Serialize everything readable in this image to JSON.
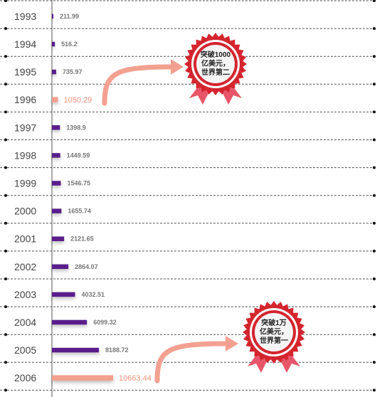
{
  "chart_data": {
    "type": "bar",
    "orientation": "horizontal",
    "categories": [
      "1993",
      "1994",
      "1995",
      "1996",
      "1997",
      "1998",
      "1999",
      "2000",
      "2001",
      "2002",
      "2003",
      "2004",
      "2005",
      "2006"
    ],
    "values": [
      211.99,
      516.2,
      735.97,
      1050.29,
      1398.9,
      1449.59,
      1546.75,
      1655.74,
      2121.65,
      2864.07,
      4032.51,
      6099.32,
      8188.72,
      10663.44
    ],
    "value_labels": [
      "211.99",
      "516.2",
      "735.97",
      "1050.29",
      "1398.9",
      "1449.59",
      "1546.75",
      "1655.74",
      "2121.65",
      "2864.07",
      "4032.51",
      "6099.32",
      "8188.72",
      "10663.44"
    ],
    "highlighted": [
      "1996",
      "2006"
    ],
    "title": "",
    "xlabel": "",
    "ylabel": "",
    "xlim": [
      0,
      10663.44
    ],
    "grid": true,
    "annotations": [
      {
        "year": "1996",
        "lines": [
          "突破1000",
          "亿美元，",
          "世界第二"
        ]
      },
      {
        "year": "2006",
        "lines": [
          "突破1万",
          "亿美元，",
          "世界第一"
        ]
      }
    ]
  },
  "colors": {
    "bar": "#5a1d8c",
    "highlight_bar": "#f3a08e",
    "arrow": "#f2a191",
    "badge_red": "#d4252f",
    "ribbon": "#e8566a"
  }
}
